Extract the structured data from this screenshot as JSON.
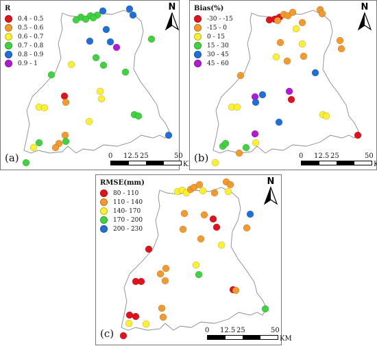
{
  "panels": [
    {
      "id": "a",
      "label": "(a)",
      "legend_title": "R",
      "classes": [
        {
          "label": "0.4 - 0.5",
          "color": "#e3111b"
        },
        {
          "label": "0.5 - 0.6",
          "color": "#f39a2b"
        },
        {
          "label": "0.6 - 0.7",
          "color": "#fbf032"
        },
        {
          "label": "0.7 - 0.8",
          "color": "#3fd43f"
        },
        {
          "label": "0.8 - 0.9",
          "color": "#1f6fd9"
        },
        {
          "label": "0.9 - 1",
          "color": "#b418d6"
        }
      ],
      "points": [
        [
          117,
          24,
          3
        ],
        [
          131,
          22,
          3
        ],
        [
          141,
          21,
          3
        ],
        [
          135,
          25,
          3
        ],
        [
          149,
          15,
          4
        ],
        [
          110,
          28,
          3
        ],
        [
          124,
          27,
          3
        ],
        [
          154,
          42,
          4
        ],
        [
          188,
          12,
          4
        ],
        [
          193,
          21,
          4
        ],
        [
          220,
          56,
          3
        ],
        [
          130,
          59,
          4
        ],
        [
          160,
          60,
          4
        ],
        [
          169,
          68,
          5
        ],
        [
          139,
          83,
          3
        ],
        [
          150,
          94,
          3
        ],
        [
          103,
          93,
          2
        ],
        [
          74,
          108,
          3
        ],
        [
          182,
          104,
          3
        ],
        [
          93,
          139,
          0
        ],
        [
          95,
          148,
          1
        ],
        [
          145,
          132,
          2
        ],
        [
          147,
          143,
          2
        ],
        [
          56,
          155,
          2
        ],
        [
          64,
          156,
          2
        ],
        [
          195,
          166,
          3
        ],
        [
          201,
          168,
          3
        ],
        [
          129,
          176,
          2
        ],
        [
          245,
          196,
          4
        ],
        [
          94,
          196,
          1
        ],
        [
          85,
          208,
          1
        ],
        [
          95,
          205,
          3
        ],
        [
          56,
          207,
          3
        ],
        [
          48,
          214,
          2
        ],
        [
          80,
          214,
          1
        ],
        [
          37,
          236,
          3
        ]
      ]
    },
    {
      "id": "b",
      "label": "(b)",
      "legend_title": "Bias(%)",
      "classes": [
        {
          "label": "-30 - -15",
          "color": "#e3111b"
        },
        {
          "label": "-15 - 0",
          "color": "#f39a2b"
        },
        {
          "label": "0 - 15",
          "color": "#fbf032"
        },
        {
          "label": "15 - 30",
          "color": "#3fd43f"
        },
        {
          "label": "30 - 45",
          "color": "#1f6fd9"
        },
        {
          "label": "45 - 60",
          "color": "#b418d6"
        }
      ],
      "points": [
        [
          392,
          28,
          0
        ],
        [
          400,
          27,
          0
        ],
        [
          407,
          24,
          0
        ],
        [
          404,
          29,
          1
        ],
        [
          413,
          20,
          1
        ],
        [
          419,
          22,
          1
        ],
        [
          426,
          17,
          1
        ],
        [
          466,
          13,
          1
        ],
        [
          469,
          19,
          1
        ],
        [
          431,
          41,
          2
        ],
        [
          440,
          32,
          1
        ],
        [
          408,
          61,
          1
        ],
        [
          440,
          63,
          2
        ],
        [
          442,
          81,
          1
        ],
        [
          495,
          58,
          1
        ],
        [
          497,
          70,
          1
        ],
        [
          402,
          82,
          2
        ],
        [
          418,
          88,
          1
        ],
        [
          459,
          105,
          4
        ],
        [
          350,
          109,
          1
        ],
        [
          421,
          132,
          5
        ],
        [
          424,
          144,
          0
        ],
        [
          371,
          140,
          5
        ],
        [
          382,
          137,
          4
        ],
        [
          372,
          148,
          4
        ],
        [
          337,
          155,
          2
        ],
        [
          345,
          155,
          2
        ],
        [
          470,
          166,
          2
        ],
        [
          475,
          168,
          2
        ],
        [
          406,
          177,
          4
        ],
        [
          521,
          196,
          0
        ],
        [
          371,
          194,
          5
        ],
        [
          372,
          207,
          2
        ],
        [
          358,
          214,
          3
        ],
        [
          324,
          212,
          3
        ],
        [
          328,
          208,
          3
        ],
        [
          348,
          222,
          1
        ],
        [
          313,
          236,
          2
        ]
      ]
    },
    {
      "id": "c",
      "label": "(c)",
      "legend_title": "RMSE(mm)",
      "classes": [
        {
          "label": "80 - 110",
          "color": "#e3111b"
        },
        {
          "label": "110 - 140",
          "color": "#f39a2b"
        },
        {
          "label": "140- 170",
          "color": "#fbf032"
        },
        {
          "label": "170 - 200",
          "color": "#3fd43f"
        },
        {
          "label": "200 - 230",
          "color": "#1f6fd9"
        }
      ],
      "points": [
        [
          258,
          278,
          2
        ],
        [
          265,
          276,
          2
        ],
        [
          271,
          280,
          2
        ],
        [
          277,
          275,
          1
        ],
        [
          282,
          272,
          1
        ],
        [
          290,
          268,
          1
        ],
        [
          295,
          277,
          2
        ],
        [
          329,
          264,
          1
        ],
        [
          335,
          268,
          1
        ],
        [
          332,
          278,
          2
        ],
        [
          312,
          280,
          1
        ],
        [
          268,
          310,
          1
        ],
        [
          297,
          312,
          1
        ],
        [
          310,
          318,
          0
        ],
        [
          364,
          311,
          4
        ],
        [
          315,
          330,
          0
        ],
        [
          359,
          331,
          1
        ],
        [
          266,
          333,
          1
        ],
        [
          292,
          347,
          1
        ],
        [
          322,
          356,
          2
        ],
        [
          216,
          362,
          0
        ],
        [
          241,
          390,
          1
        ],
        [
          233,
          398,
          1
        ],
        [
          285,
          385,
          2
        ],
        [
          289,
          399,
          3
        ],
        [
          197,
          409,
          0
        ],
        [
          205,
          409,
          0
        ],
        [
          240,
          408,
          1
        ],
        [
          339,
          421,
          0
        ],
        [
          343,
          422,
          1
        ],
        [
          434,
          427,
          1
        ],
        [
          386,
          449,
          3
        ],
        [
          235,
          448,
          1
        ],
        [
          237,
          461,
          1
        ],
        [
          188,
          458,
          0
        ],
        [
          197,
          460,
          0
        ],
        [
          187,
          470,
          2
        ],
        [
          212,
          471,
          2
        ],
        [
          179,
          488,
          0
        ]
      ]
    }
  ],
  "map_texts": {
    "north_label": "N",
    "scale_labels": [
      "0",
      "12.5",
      "25",
      "50"
    ],
    "scale_unit": "KM"
  }
}
